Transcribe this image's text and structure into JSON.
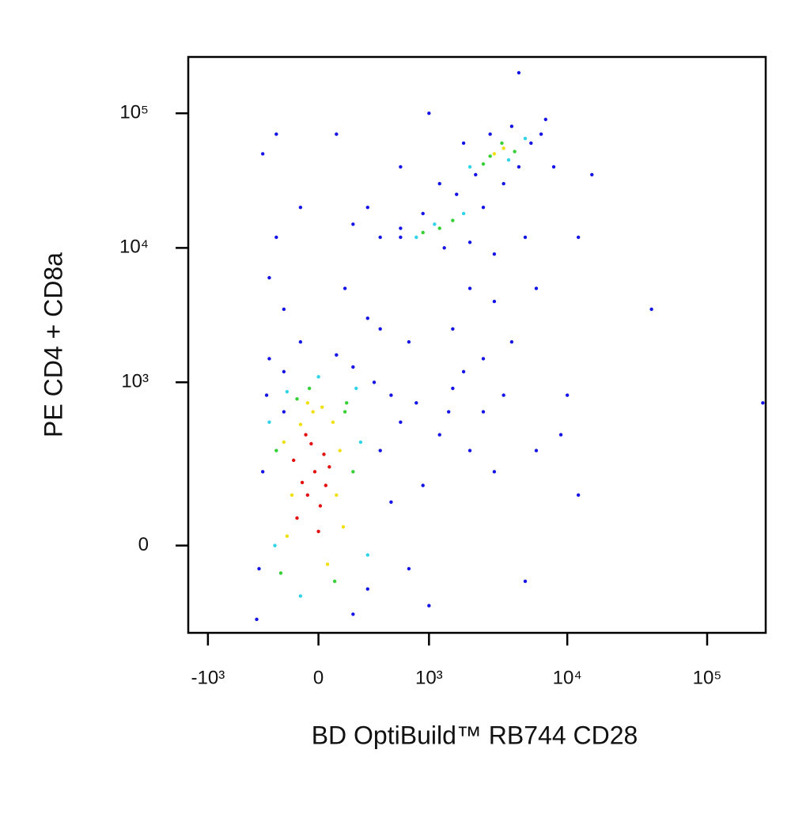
{
  "chart_data": {
    "type": "scatter",
    "x_label": "BD OptiBuild™ RB744 CD28",
    "y_label": "PE CD4 + CD8a",
    "xscale": "biexponential",
    "yscale": "biexponential",
    "xlim": [
      -1400,
      262144
    ],
    "ylim": [
      -260,
      262144
    ],
    "xticks": [
      {
        "value": -1000,
        "label": "-10³"
      },
      0,
      {
        "value": 1000,
        "label": "10³"
      },
      {
        "value": 10000,
        "label": "10⁴"
      },
      {
        "value": 100000,
        "label": "10⁵"
      }
    ],
    "yticks": [
      0,
      {
        "value": 1000,
        "label": "10³"
      },
      {
        "value": 10000,
        "label": "10⁴"
      },
      {
        "value": 100000,
        "label": "10⁵"
      }
    ],
    "series": [
      {
        "color": "#1414e6",
        "x": [
          -350,
          -320,
          400,
          500,
          -380,
          350,
          200,
          100,
          -200,
          600,
          800,
          1200,
          1500,
          2000,
          2500,
          3000,
          900,
          1800,
          700,
          400,
          300,
          -100,
          -200,
          150,
          -300,
          -250,
          -100,
          200,
          400,
          600,
          900,
          1300,
          2000,
          2500,
          3000,
          1600,
          2200,
          2800,
          4000,
          5500,
          6500,
          7000,
          1800,
          1200,
          3500,
          4500,
          8000,
          12000,
          15000,
          40000,
          10000,
          9000,
          12000,
          5000,
          -400,
          1000,
          200,
          4500,
          1000,
          -350,
          -250,
          100,
          600,
          -300,
          -200,
          300,
          700,
          2500,
          4000,
          3500,
          1500,
          6000,
          600,
          300,
          5000,
          6000,
          2000,
          3000,
          1400,
          500,
          250000
        ],
        "y": [
          200,
          800,
          300,
          100,
          -50,
          1000,
          1300,
          1600,
          1200,
          500,
          700,
          400,
          900,
          300,
          600,
          200,
          150,
          1200,
          2000,
          2500,
          3000,
          2000,
          3500,
          5000,
          6000,
          12000,
          20000,
          15000,
          12000,
          14000,
          18000,
          10000,
          11000,
          20000,
          9000,
          25000,
          35000,
          70000,
          80000,
          60000,
          70000,
          90000,
          60000,
          30000,
          30000,
          40000,
          40000,
          12000,
          35000,
          3500,
          800,
          400,
          120,
          -80,
          -200,
          -150,
          -180,
          200000,
          100000,
          50000,
          70000,
          70000,
          40000,
          1500,
          600,
          -100,
          -50,
          1500,
          2000,
          800,
          2500,
          300,
          12000,
          20000,
          12000,
          5000,
          5000,
          4000,
          600,
          800,
          700
        ]
      },
      {
        "color": "#30d4e8",
        "x": [
          -300,
          250,
          -260,
          220,
          0,
          -180,
          300,
          2000,
          5000,
          3800,
          800,
          1800,
          1100,
          -100
        ],
        "y": [
          500,
          350,
          0,
          900,
          1100,
          850,
          -20,
          40000,
          65000,
          45000,
          12000,
          18000,
          15000,
          -120
        ]
      },
      {
        "color": "#34d034",
        "x": [
          -250,
          150,
          -220,
          200,
          -120,
          90,
          -50,
          160,
          2800,
          3400,
          4200,
          2500,
          1200,
          1500,
          900
        ],
        "y": [
          300,
          600,
          -60,
          200,
          750,
          -80,
          900,
          700,
          48000,
          60000,
          52000,
          42000,
          14000,
          16000,
          13000
        ]
      },
      {
        "color": "#f0e010",
        "x": [
          -180,
          -100,
          80,
          120,
          -150,
          -30,
          50,
          -200,
          100,
          -60,
          20,
          140,
          3000,
          3500
        ],
        "y": [
          20,
          480,
          500,
          300,
          120,
          600,
          -40,
          350,
          120,
          700,
          650,
          40,
          50000,
          55000
        ]
      },
      {
        "color": "#e41010",
        "x": [
          -120,
          -60,
          -20,
          30,
          -90,
          10,
          -40,
          60,
          -140,
          0,
          -70,
          40
        ],
        "y": [
          60,
          120,
          200,
          280,
          160,
          90,
          340,
          220,
          250,
          30,
          400,
          150
        ]
      }
    ]
  }
}
